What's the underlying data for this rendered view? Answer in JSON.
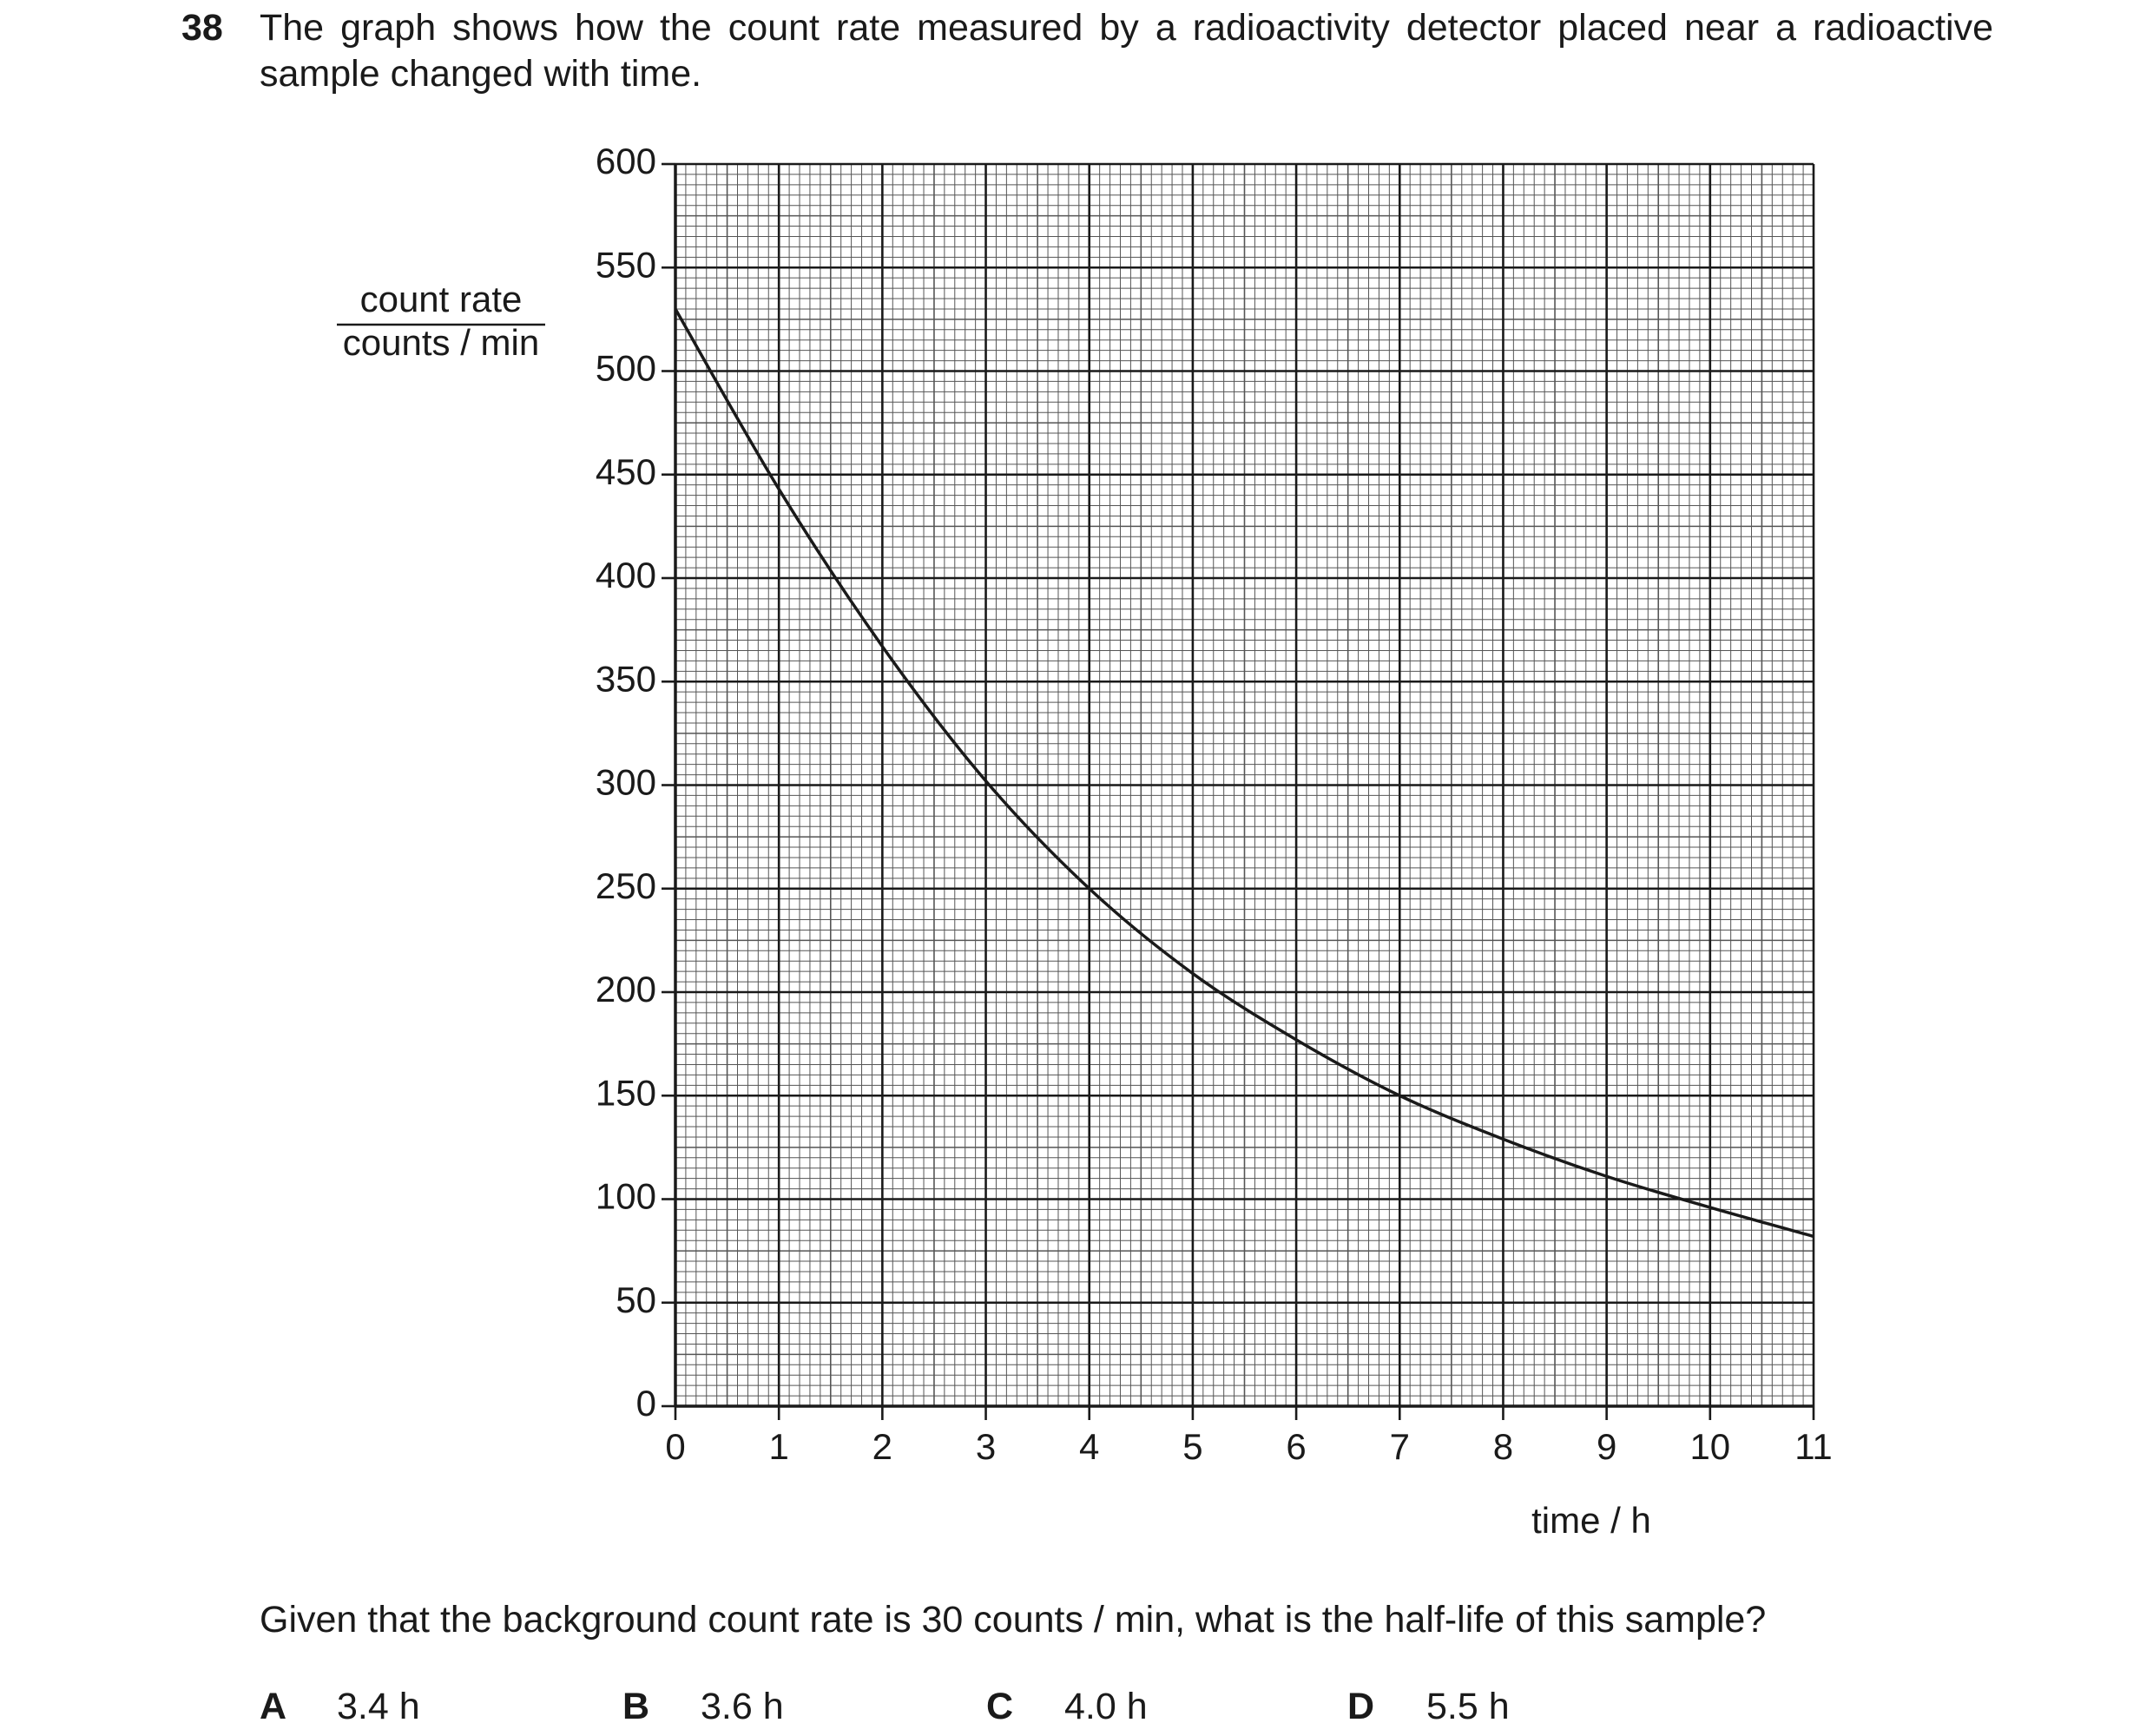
{
  "question_number": "38",
  "question": "The graph shows how the count rate measured by a radioactivity detector placed near a radioactive sample changed with time.",
  "chart_data": {
    "type": "line",
    "ylabel_top": "count rate",
    "ylabel_bottom": "counts / min",
    "xlabel": "time / h",
    "x": [
      0,
      1,
      2,
      3,
      4,
      5,
      6,
      7,
      8,
      9,
      10,
      11
    ],
    "values": [
      530,
      443,
      367,
      302,
      250,
      209,
      177,
      150,
      129,
      111,
      96,
      82
    ],
    "color": "#1a1a1a",
    "xlim": [
      0,
      11
    ],
    "xticks": [
      0,
      1,
      2,
      3,
      4,
      5,
      6,
      7,
      8,
      9,
      10,
      11
    ],
    "ylim": [
      0,
      600
    ],
    "yticks": [
      0,
      50,
      100,
      150,
      200,
      250,
      300,
      350,
      400,
      450,
      500,
      550,
      600
    ],
    "grid": true
  },
  "followup": "Given that the background count rate is 30 counts / min, what is the half-life of this sample?",
  "options": [
    {
      "letter": "A",
      "text": "3.4 h"
    },
    {
      "letter": "B",
      "text": "3.6 h"
    },
    {
      "letter": "C",
      "text": "4.0 h"
    },
    {
      "letter": "D",
      "text": "5.5 h"
    }
  ]
}
